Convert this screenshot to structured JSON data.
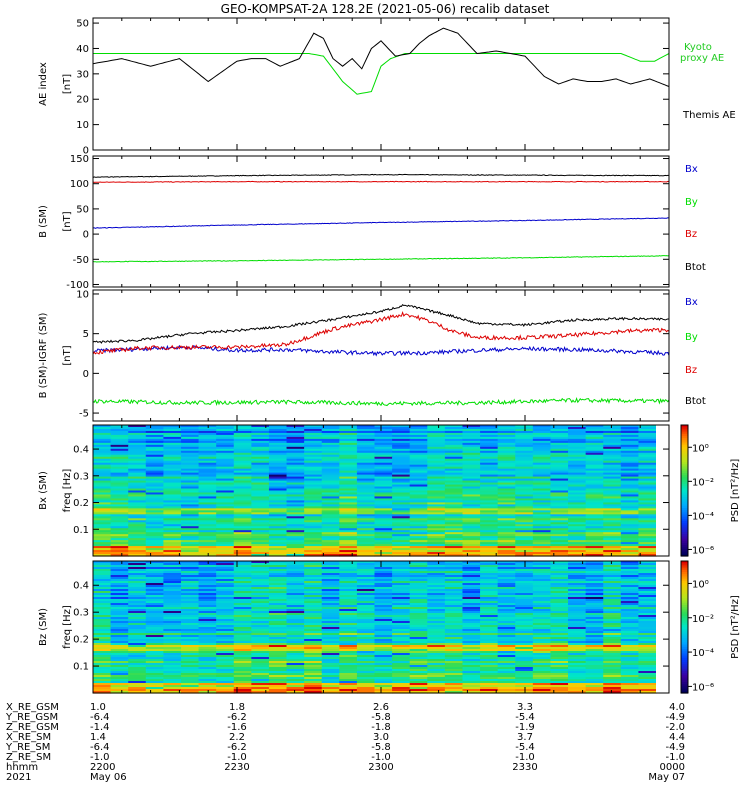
{
  "title": "GEO-KOMPSAT-2A 128.2E (2021-05-06) recalib dataset",
  "colors": {
    "black": "#000000",
    "green": "#00dd00",
    "blue": "#0000cc",
    "red": "#dd0000",
    "kyoto": "#22cc22"
  },
  "chart_data": [
    {
      "type": "line",
      "name": "ae-panel",
      "ylabel_line1": "AE index",
      "ylabel_line2": "[nT]",
      "ylim": [
        0,
        52
      ],
      "yticks": [
        "0",
        "10",
        "20",
        "30",
        "40",
        "50"
      ],
      "ytick_values": [
        0,
        10,
        20,
        30,
        40,
        50
      ],
      "xlim": [
        0,
        120
      ],
      "legend": [
        "Kyoto",
        "proxy AE",
        "Themis AE"
      ],
      "series": [
        {
          "name": "Themis AE",
          "color": "black",
          "x": [
            0,
            6,
            12,
            18,
            24,
            27,
            30,
            33,
            36,
            39,
            43,
            46,
            48,
            50,
            52,
            54,
            56,
            58,
            60,
            63,
            66,
            68,
            70,
            73,
            76,
            80,
            84,
            87,
            90,
            94,
            97,
            100,
            103,
            106,
            109,
            112,
            116,
            120
          ],
          "y": [
            34,
            36,
            33,
            36,
            27,
            31,
            35,
            36,
            36,
            33,
            36,
            46,
            44,
            36,
            33,
            36,
            32,
            40,
            43,
            37,
            38,
            42,
            45,
            48,
            46,
            38,
            39,
            38,
            37,
            29,
            26,
            28,
            27,
            27,
            28,
            26,
            28,
            25
          ]
        },
        {
          "name": "Kyoto proxy AE",
          "color": "green",
          "x": [
            0,
            45,
            48,
            52,
            55,
            58,
            60,
            62,
            65,
            70,
            80,
            90,
            100,
            110,
            114,
            117,
            120
          ],
          "y": [
            38,
            38,
            37,
            27,
            22,
            23,
            33,
            36,
            38,
            38,
            38,
            38,
            38,
            38,
            35,
            35,
            38
          ]
        }
      ]
    },
    {
      "type": "line",
      "name": "b-panel",
      "ylabel_line1": "B (SM)",
      "ylabel_line2": "[nT]",
      "ylim": [
        -105,
        155
      ],
      "yticks": [
        "-100",
        "-50",
        "0",
        "50",
        "100",
        "150"
      ],
      "ytick_values": [
        -100,
        -50,
        0,
        50,
        100,
        150
      ],
      "xlim": [
        0,
        120
      ],
      "legend": [
        "Bx",
        "By",
        "Bz",
        "Btot"
      ],
      "series": [
        {
          "name": "Btot",
          "color": "black",
          "x": [
            0,
            30,
            60,
            90,
            120
          ],
          "y": [
            113,
            116,
            118,
            117,
            116
          ]
        },
        {
          "name": "Bz",
          "color": "red",
          "x": [
            0,
            30,
            60,
            90,
            120
          ],
          "y": [
            103,
            104,
            104,
            104,
            104
          ]
        },
        {
          "name": "Bx",
          "color": "blue",
          "x": [
            0,
            30,
            60,
            90,
            120
          ],
          "y": [
            12,
            18,
            23,
            27,
            32
          ]
        },
        {
          "name": "By",
          "color": "green",
          "x": [
            0,
            30,
            60,
            90,
            120
          ],
          "y": [
            -55,
            -53,
            -50,
            -47,
            -43
          ]
        }
      ]
    },
    {
      "type": "line",
      "name": "dbdiff-panel",
      "ylabel_line1": "B (SM)-IGRF (SM)",
      "ylabel_line2": "[nT]",
      "ylim": [
        -6,
        10.5
      ],
      "yticks": [
        "-5",
        "0",
        "5",
        "10"
      ],
      "ytick_values": [
        -5,
        0,
        5,
        10
      ],
      "xlim": [
        0,
        120
      ],
      "legend": [
        "Bx",
        "By",
        "Bz",
        "Btot"
      ],
      "series": [
        {
          "name": "Btot",
          "color": "black",
          "x": [
            0,
            10,
            20,
            30,
            40,
            50,
            60,
            65,
            70,
            75,
            80,
            90,
            100,
            110,
            120
          ],
          "y": [
            3.9,
            4.2,
            5.0,
            5.4,
            5.9,
            6.8,
            7.8,
            8.6,
            7.9,
            7.2,
            6.3,
            6.1,
            6.7,
            6.9,
            6.8
          ]
        },
        {
          "name": "Bz",
          "color": "red",
          "x": [
            0,
            10,
            20,
            30,
            40,
            50,
            60,
            65,
            70,
            75,
            80,
            90,
            100,
            110,
            120
          ],
          "y": [
            2.6,
            3.2,
            3.3,
            3.3,
            3.6,
            5.6,
            6.8,
            7.5,
            6.6,
            5.3,
            4.5,
            4.5,
            4.8,
            5.3,
            5.5
          ]
        },
        {
          "name": "Bx",
          "color": "blue",
          "x": [
            0,
            10,
            20,
            30,
            40,
            50,
            60,
            70,
            80,
            90,
            100,
            110,
            120
          ],
          "y": [
            2.8,
            3.1,
            3.3,
            2.9,
            3.0,
            2.7,
            2.5,
            2.6,
            2.9,
            3.1,
            3.0,
            2.8,
            2.5
          ]
        },
        {
          "name": "By",
          "color": "green",
          "x": [
            0,
            20,
            40,
            60,
            80,
            100,
            120
          ],
          "y": [
            -3.5,
            -3.7,
            -3.6,
            -3.8,
            -3.7,
            -3.4,
            -3.5
          ]
        }
      ]
    },
    {
      "type": "heatmap",
      "name": "bx-spectrogram",
      "ylabel_line1": "Bx (SM)",
      "ylabel_line2": "freq [Hz]",
      "ylim": [
        0,
        0.49
      ],
      "yticks": [
        "0.1",
        "0.2",
        "0.3",
        "0.4"
      ],
      "ytick_values": [
        0.1,
        0.2,
        0.3,
        0.4
      ],
      "xlim": [
        0,
        120
      ],
      "colorbar_label": "PSD [nT²/Hz]",
      "colorbar_ticks": [
        "10⁰",
        "10⁻²",
        "10⁻⁴",
        "10⁻⁶"
      ]
    },
    {
      "type": "heatmap",
      "name": "bz-spectrogram",
      "ylabel_line1": "Bz (SM)",
      "ylabel_line2": "freq [Hz]",
      "ylim": [
        0,
        0.49
      ],
      "yticks": [
        "0.1",
        "0.2",
        "0.3",
        "0.4"
      ],
      "ytick_values": [
        0.1,
        0.2,
        0.3,
        0.4
      ],
      "xlim": [
        0,
        120
      ],
      "colorbar_label": "PSD [nT²/Hz]",
      "colorbar_ticks": [
        "10⁰",
        "10⁻²",
        "10⁻⁴",
        "10⁻⁶"
      ]
    }
  ],
  "ephemeris": {
    "labels": [
      "X_RE_GSM",
      "Y_RE_GSM",
      "Z_RE_GSM",
      "X_RE_SM",
      "Y_RE_SM",
      "Z_RE_SM",
      "hhmm",
      "2021"
    ],
    "columns": [
      {
        "x": 0,
        "values": [
          "1.0",
          "-6.4",
          "-1.4",
          "1.4",
          "-6.4",
          "-1.0",
          "2200",
          "May 06"
        ]
      },
      {
        "x": 30,
        "values": [
          "1.8",
          "-6.2",
          "-1.6",
          "2.2",
          "-6.2",
          "-1.0",
          "2230",
          ""
        ]
      },
      {
        "x": 60,
        "values": [
          "2.6",
          "-5.8",
          "-1.8",
          "3.0",
          "-5.8",
          "-1.0",
          "2300",
          ""
        ]
      },
      {
        "x": 90,
        "values": [
          "3.3",
          "-5.4",
          "-1.9",
          "3.7",
          "-5.4",
          "-1.0",
          "2330",
          ""
        ]
      },
      {
        "x": 120,
        "values": [
          "4.0",
          "-4.9",
          "-2.0",
          "4.4",
          "-4.9",
          "-1.0",
          "0000",
          "May 07"
        ]
      }
    ]
  }
}
